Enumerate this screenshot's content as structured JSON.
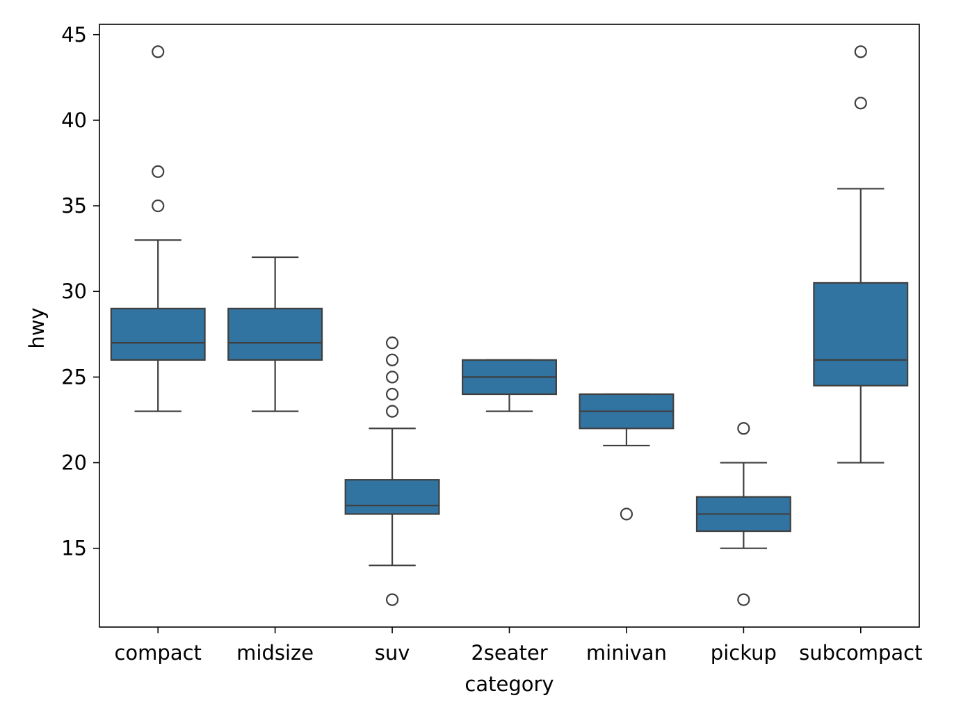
{
  "chart_data": {
    "type": "box",
    "title": "",
    "xlabel": "category",
    "ylabel": "hwy",
    "ylim": [
      10.4,
      45.6
    ],
    "yticks": [
      15,
      20,
      25,
      30,
      35,
      40,
      45
    ],
    "grid": false,
    "box_color": "#3274a1",
    "line_color": "#3f3f3f",
    "categories": [
      "compact",
      "midsize",
      "suv",
      "2seater",
      "minivan",
      "pickup",
      "subcompact"
    ],
    "boxes": [
      {
        "category": "compact",
        "whisker_low": 23,
        "q1": 26,
        "median": 27,
        "q3": 29,
        "whisker_high": 33,
        "outliers": [
          35,
          37,
          44
        ]
      },
      {
        "category": "midsize",
        "whisker_low": 23,
        "q1": 26,
        "median": 27,
        "q3": 29,
        "whisker_high": 32,
        "outliers": []
      },
      {
        "category": "suv",
        "whisker_low": 14,
        "q1": 17,
        "median": 17.5,
        "q3": 19,
        "whisker_high": 22,
        "outliers": [
          12,
          23,
          24,
          25,
          26,
          27
        ]
      },
      {
        "category": "2seater",
        "whisker_low": 23,
        "q1": 24,
        "median": 25,
        "q3": 26,
        "whisker_high": 26,
        "outliers": []
      },
      {
        "category": "minivan",
        "whisker_low": 21,
        "q1": 22,
        "median": 23,
        "q3": 24,
        "whisker_high": 24,
        "outliers": [
          17
        ]
      },
      {
        "category": "pickup",
        "whisker_low": 15,
        "q1": 16,
        "median": 17,
        "q3": 18,
        "whisker_high": 20,
        "outliers": [
          12,
          22
        ]
      },
      {
        "category": "subcompact",
        "whisker_low": 20,
        "q1": 24.5,
        "median": 26,
        "q3": 30.5,
        "whisker_high": 36,
        "outliers": [
          41,
          44
        ]
      }
    ]
  }
}
